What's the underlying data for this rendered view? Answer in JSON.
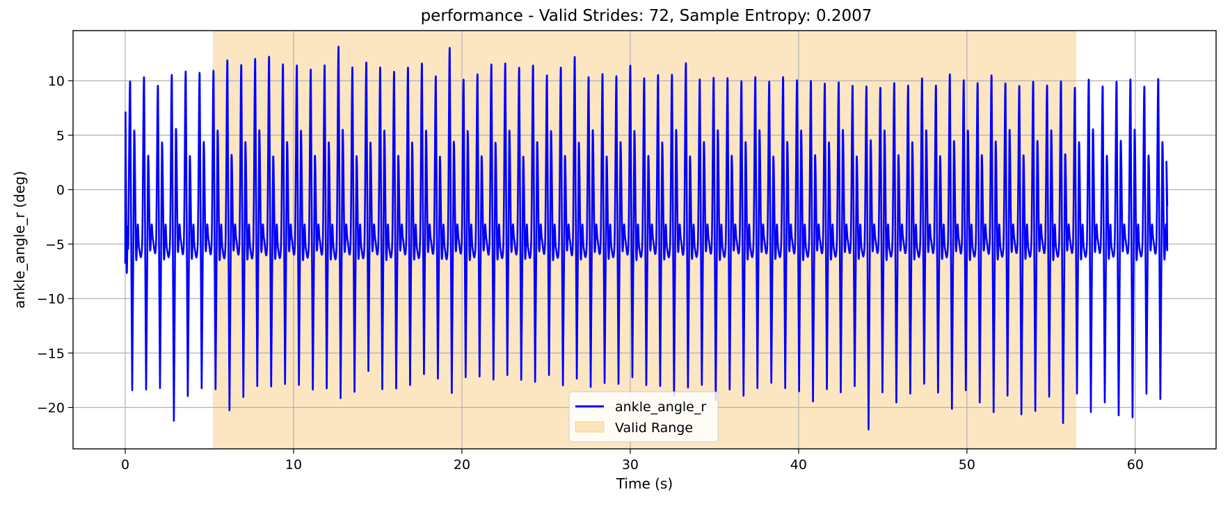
{
  "chart_data": {
    "type": "line",
    "title": "performance - Valid Strides: 72, Sample Entropy: 0.2007",
    "xlabel": "Time (s)",
    "ylabel": "ankle_angle_r (deg)",
    "xlim": [
      -3.1,
      64.8
    ],
    "ylim": [
      -23.8,
      14.6
    ],
    "xticks": [
      0,
      10,
      20,
      30,
      40,
      50,
      60
    ],
    "yticks": [
      -20,
      -15,
      -10,
      -5,
      0,
      5,
      10
    ],
    "grid": true,
    "legend_position": "bottom-center",
    "series": [
      {
        "name": "ankle_angle_r",
        "color": "#0000ff",
        "t_start": 0.0,
        "t_end": 61.9,
        "cycle_count": 75,
        "cycle_period_s": 0.82,
        "peak_values_approx": [
          9.7,
          10.1,
          9.3,
          10.2,
          10.6,
          10.5,
          10.7,
          11.6,
          11.2,
          11.8,
          12.0,
          11.3,
          11.2,
          10.8,
          11.2,
          12.9,
          11.0,
          11.5,
          11.0,
          10.6,
          11.0,
          11.4,
          10.2,
          12.8,
          9.9,
          10.4,
          11.3,
          11.4,
          11.0,
          11.2,
          10.3,
          11.0,
          12.0,
          10.1,
          10.4,
          10.2,
          11.2,
          10.0,
          10.3,
          10.3,
          11.4,
          9.9,
          10.0,
          10.0,
          9.7,
          10.1,
          9.7,
          10.1,
          9.8,
          9.7,
          9.5,
          9.6,
          9.3,
          9.1,
          9.1,
          9.5,
          9.3,
          10.0,
          9.3,
          10.3,
          9.8,
          9.5,
          10.2,
          9.5,
          9.2,
          9.6,
          9.3,
          9.6,
          9.1,
          9.8,
          9.2,
          9.6,
          9.8,
          9.2,
          9.9
        ],
        "trough_values_approx": [
          -18.4,
          -18.3,
          -18.2,
          -21.2,
          -18.9,
          -18.2,
          -18.3,
          -20.2,
          -19.0,
          -18.0,
          -18.0,
          -17.8,
          -17.9,
          -18.3,
          -18.2,
          -19.1,
          -18.5,
          -16.6,
          -18.3,
          -18.2,
          -17.9,
          -16.9,
          -17.3,
          -18.6,
          -17.2,
          -17.1,
          -17.4,
          -17.0,
          -17.4,
          -17.6,
          -17.0,
          -17.9,
          -17.3,
          -18.1,
          -17.7,
          -17.8,
          -17.2,
          -17.9,
          -18.0,
          -18.9,
          -18.1,
          -17.9,
          -19.3,
          -18.3,
          -18.9,
          -18.2,
          -17.7,
          -18.2,
          -18.5,
          -19.4,
          -18.3,
          -18.6,
          -18.0,
          -22.0,
          -18.6,
          -19.5,
          -18.7,
          -17.8,
          -18.6,
          -20.1,
          -18.4,
          -19.5,
          -20.4,
          -18.9,
          -20.6,
          -20.3,
          -19.0,
          -21.4,
          -18.7,
          -20.4,
          -19.5,
          -20.7,
          -20.9,
          -18.7,
          -19.2
        ]
      }
    ],
    "shaded_regions": [
      {
        "name": "Valid Range",
        "x_start": 5.2,
        "x_end": 56.5,
        "color": "#f5a623",
        "opacity": 0.28
      }
    ],
    "legend": [
      {
        "label": "ankle_angle_r",
        "kind": "line",
        "color": "#0000ff"
      },
      {
        "label": "Valid Range",
        "kind": "patch",
        "color": "#f5a623"
      }
    ]
  }
}
